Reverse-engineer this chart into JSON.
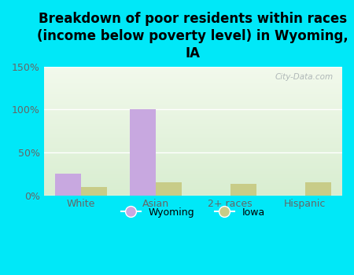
{
  "title": "Breakdown of poor residents within races\n(income below poverty level) in Wyoming,\nIA",
  "categories": [
    "White",
    "Asian",
    "2+ races",
    "Hispanic"
  ],
  "wyoming_values": [
    25,
    100,
    0,
    0
  ],
  "iowa_values": [
    10,
    15,
    13,
    15
  ],
  "wyoming_color": "#c8a8e0",
  "iowa_color": "#c8cc88",
  "ylim": [
    0,
    150
  ],
  "yticks": [
    0,
    50,
    100,
    150
  ],
  "ytick_labels": [
    "0%",
    "50%",
    "100%",
    "150%"
  ],
  "bg_outer": "#00e8f8",
  "bg_plot_top": "#f2f9ec",
  "bg_plot_bottom": "#d8edd0",
  "bar_width": 0.35,
  "title_fontsize": 12,
  "watermark": "City-Data.com"
}
